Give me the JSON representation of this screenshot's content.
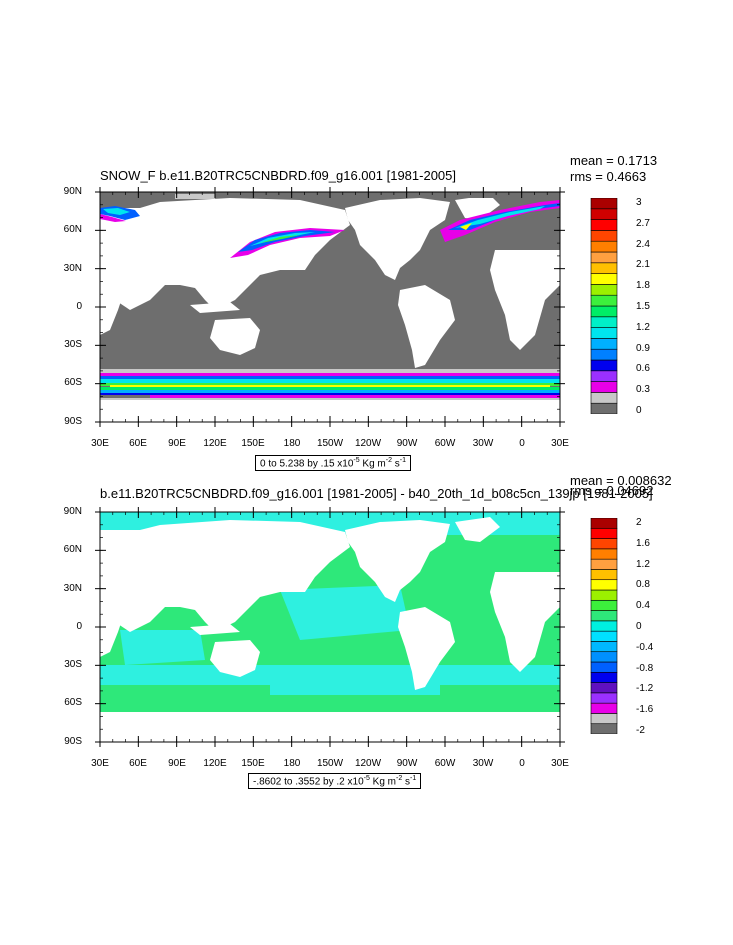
{
  "top": {
    "title": "SNOW_F b.e11.B20TRC5CNBDRD.f09_g16.001 [1981-2005]",
    "mean": "mean = 0.1713",
    "rms": "rms = 0.4663",
    "range_note": "0 to 5.238 by .15 x10",
    "range_exp": "-5",
    "range_units": " Kg m",
    "range_exp2": "-2",
    "range_units2": " s",
    "range_exp3": "-1",
    "colorbar_labels": [
      "3",
      "2.7",
      "2.4",
      "2.1",
      "1.8",
      "1.5",
      "1.2",
      "0.9",
      "0.6",
      "0.3",
      "0"
    ]
  },
  "bottom": {
    "title": "b.e11.B20TRC5CNBDRD.f09_g16.001 [1981-2005] - b40_20th_1d_b08c5cn_139jp [1981-2005]",
    "mean": "mean = 0.008632",
    "rms": "rms = 0.04692",
    "range_note": "-.8602 to .3552 by .2 x10",
    "range_exp": "-5",
    "range_units": " Kg m",
    "range_exp2": "-2",
    "range_units2": " s",
    "range_exp3": "-1",
    "colorbar_labels": [
      "2",
      "1.6",
      "1.2",
      "0.8",
      "0.4",
      "0",
      "-0.4",
      "-0.8",
      "-1.2",
      "-1.6",
      "-2"
    ]
  },
  "axes": {
    "lat_labels": [
      "90N",
      "60N",
      "30N",
      "0",
      "30S",
      "60S",
      "90S"
    ],
    "lon_labels": [
      "30E",
      "60E",
      "90E",
      "120E",
      "150E",
      "180",
      "150W",
      "120W",
      "90W",
      "60W",
      "30W",
      "0",
      "30E"
    ]
  },
  "colors": {
    "land": "#ffffff",
    "ocean_top": "#6e6e6e",
    "ocean_bottom_main": "#2ee87a",
    "ocean_bottom_light": "#2ef0e0",
    "top_palette": [
      "#6e6e6e",
      "#c8c8c8",
      "#e800e8",
      "#9b30ff",
      "#0000ee",
      "#0080ff",
      "#00b0ff",
      "#00e5ee",
      "#00f0c8",
      "#00ee66",
      "#3cf03c",
      "#9cf000",
      "#ffff00",
      "#ffc000",
      "#ffa040",
      "#ff7f00",
      "#ff4500",
      "#ff0000",
      "#d00000",
      "#aa0000"
    ],
    "bottom_palette": [
      "#6e6e6e",
      "#c8c8c8",
      "#e800e8",
      "#9b30ff",
      "#6010c0",
      "#0000ee",
      "#0060ff",
      "#0090ff",
      "#00b8ff",
      "#00e0ff",
      "#00f0e0",
      "#2ee87a",
      "#3cf03c",
      "#9cf000",
      "#ffff00",
      "#ffc000",
      "#ffa040",
      "#ff7f00",
      "#ff4500",
      "#ff0000",
      "#aa0000"
    ]
  }
}
